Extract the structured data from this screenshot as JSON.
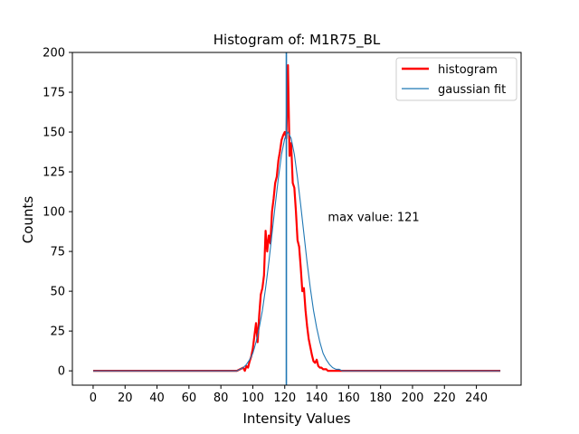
{
  "chart_data": {
    "type": "line",
    "title": "Histogram of: M1R75_BL",
    "xlabel": "Intensity Values",
    "ylabel": "Counts",
    "xlim": [
      -13,
      268
    ],
    "ylim": [
      -9,
      200
    ],
    "xticks": [
      0,
      20,
      40,
      60,
      80,
      100,
      120,
      140,
      160,
      180,
      200,
      220,
      240
    ],
    "yticks": [
      0,
      25,
      50,
      75,
      100,
      125,
      150,
      175,
      200
    ],
    "grid": false,
    "legend_position": "top-right",
    "annotation": {
      "text": "max value: 121",
      "x": 147,
      "y": 97
    },
    "vline": {
      "x": 121,
      "color": "#1f77b4"
    },
    "series": [
      {
        "name": "histogram",
        "color": "#ff0000",
        "x": [
          0,
          60,
          90,
          92,
          94,
          95,
          96,
          97,
          98,
          99,
          100,
          101,
          102,
          103,
          104,
          105,
          106,
          107,
          108,
          109,
          110,
          111,
          112,
          113,
          114,
          115,
          116,
          117,
          118,
          119,
          120,
          121,
          122,
          123,
          124,
          125,
          126,
          127,
          128,
          129,
          130,
          131,
          132,
          133,
          134,
          135,
          136,
          137,
          138,
          139,
          140,
          141,
          142,
          143,
          144,
          145,
          146,
          147,
          148,
          149,
          150,
          152,
          154,
          156,
          160,
          200,
          255
        ],
        "values": [
          0,
          0,
          0,
          1,
          2,
          0,
          3,
          2,
          6,
          9,
          14,
          22,
          30,
          18,
          35,
          48,
          52,
          60,
          88,
          75,
          85,
          80,
          100,
          108,
          118,
          122,
          132,
          138,
          145,
          148,
          150,
          146,
          192,
          135,
          143,
          118,
          115,
          100,
          82,
          78,
          65,
          50,
          52,
          38,
          28,
          20,
          15,
          10,
          6,
          5,
          7,
          3,
          2,
          2,
          1,
          1,
          1,
          0,
          0,
          0,
          0,
          0,
          0,
          0,
          0,
          0,
          0
        ]
      },
      {
        "name": "gaussian fit",
        "color": "#1f77b4",
        "x": [
          0,
          60,
          88,
          90,
          92,
          94,
          96,
          98,
          100,
          102,
          104,
          106,
          108,
          110,
          112,
          114,
          116,
          118,
          120,
          122,
          124,
          126,
          128,
          130,
          132,
          134,
          136,
          138,
          140,
          142,
          144,
          146,
          148,
          150,
          152,
          154,
          156,
          160,
          200,
          255
        ],
        "values": [
          0,
          0,
          0,
          0,
          1,
          2,
          4,
          7,
          11,
          18,
          27,
          38,
          52,
          68,
          86,
          104,
          121,
          136,
          146,
          150,
          146,
          136,
          121,
          104,
          86,
          68,
          52,
          38,
          27,
          18,
          11,
          7,
          4,
          2,
          1,
          1,
          0,
          0,
          0,
          0
        ]
      }
    ]
  }
}
